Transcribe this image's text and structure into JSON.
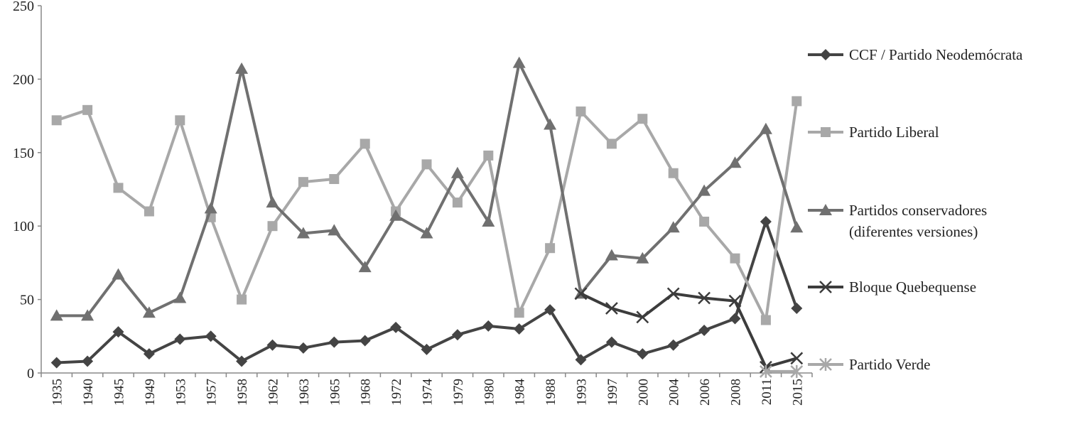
{
  "chart_data": {
    "type": "line",
    "title": "",
    "xlabel": "",
    "ylabel": "",
    "ylim": [
      0,
      250
    ],
    "yticks": [
      0,
      50,
      100,
      150,
      200,
      250
    ],
    "grid": false,
    "legend_position": "right",
    "categories": [
      "1935",
      "1940",
      "1945",
      "1949",
      "1953",
      "1957",
      "1958",
      "1962",
      "1963",
      "1965",
      "1968",
      "1972",
      "1974",
      "1979",
      "1980",
      "1984",
      "1988",
      "1993",
      "1997",
      "2000",
      "2004",
      "2006",
      "2008",
      "2011",
      "2015"
    ],
    "series": [
      {
        "name": "CCF / Partido Neodemócrata",
        "color": "#444444",
        "marker": "diamond",
        "values": [
          7,
          8,
          28,
          13,
          23,
          25,
          8,
          19,
          17,
          21,
          22,
          31,
          16,
          26,
          32,
          30,
          43,
          9,
          21,
          13,
          19,
          29,
          37,
          103,
          44
        ]
      },
      {
        "name": "Partido Liberal",
        "color": "#a8a8a8",
        "marker": "square",
        "values": [
          172,
          179,
          126,
          110,
          172,
          106,
          50,
          100,
          130,
          132,
          156,
          110,
          142,
          116,
          148,
          41,
          85,
          178,
          156,
          173,
          136,
          103,
          78,
          36,
          185
        ]
      },
      {
        "name": "Partidos conservadores (diferentes versiones)",
        "name_lines": [
          "Partidos conservadores",
          "(diferentes versiones)"
        ],
        "color": "#707070",
        "marker": "triangle",
        "values": [
          39,
          39,
          67,
          41,
          51,
          112,
          207,
          116,
          95,
          97,
          72,
          107,
          95,
          136,
          103,
          211,
          169,
          54,
          80,
          78,
          99,
          124,
          143,
          166,
          99
        ]
      },
      {
        "name": "Bloque Quebequense",
        "color": "#3c3c3c",
        "marker": "x",
        "values": [
          null,
          null,
          null,
          null,
          null,
          null,
          null,
          null,
          null,
          null,
          null,
          null,
          null,
          null,
          null,
          null,
          null,
          54,
          44,
          38,
          54,
          51,
          49,
          4,
          10
        ]
      },
      {
        "name": "Partido Verde",
        "color": "#a8a8a8",
        "marker": "star",
        "values": [
          null,
          null,
          null,
          null,
          null,
          null,
          null,
          null,
          null,
          null,
          null,
          null,
          null,
          null,
          null,
          null,
          null,
          null,
          null,
          null,
          null,
          null,
          null,
          1,
          1
        ]
      }
    ]
  }
}
